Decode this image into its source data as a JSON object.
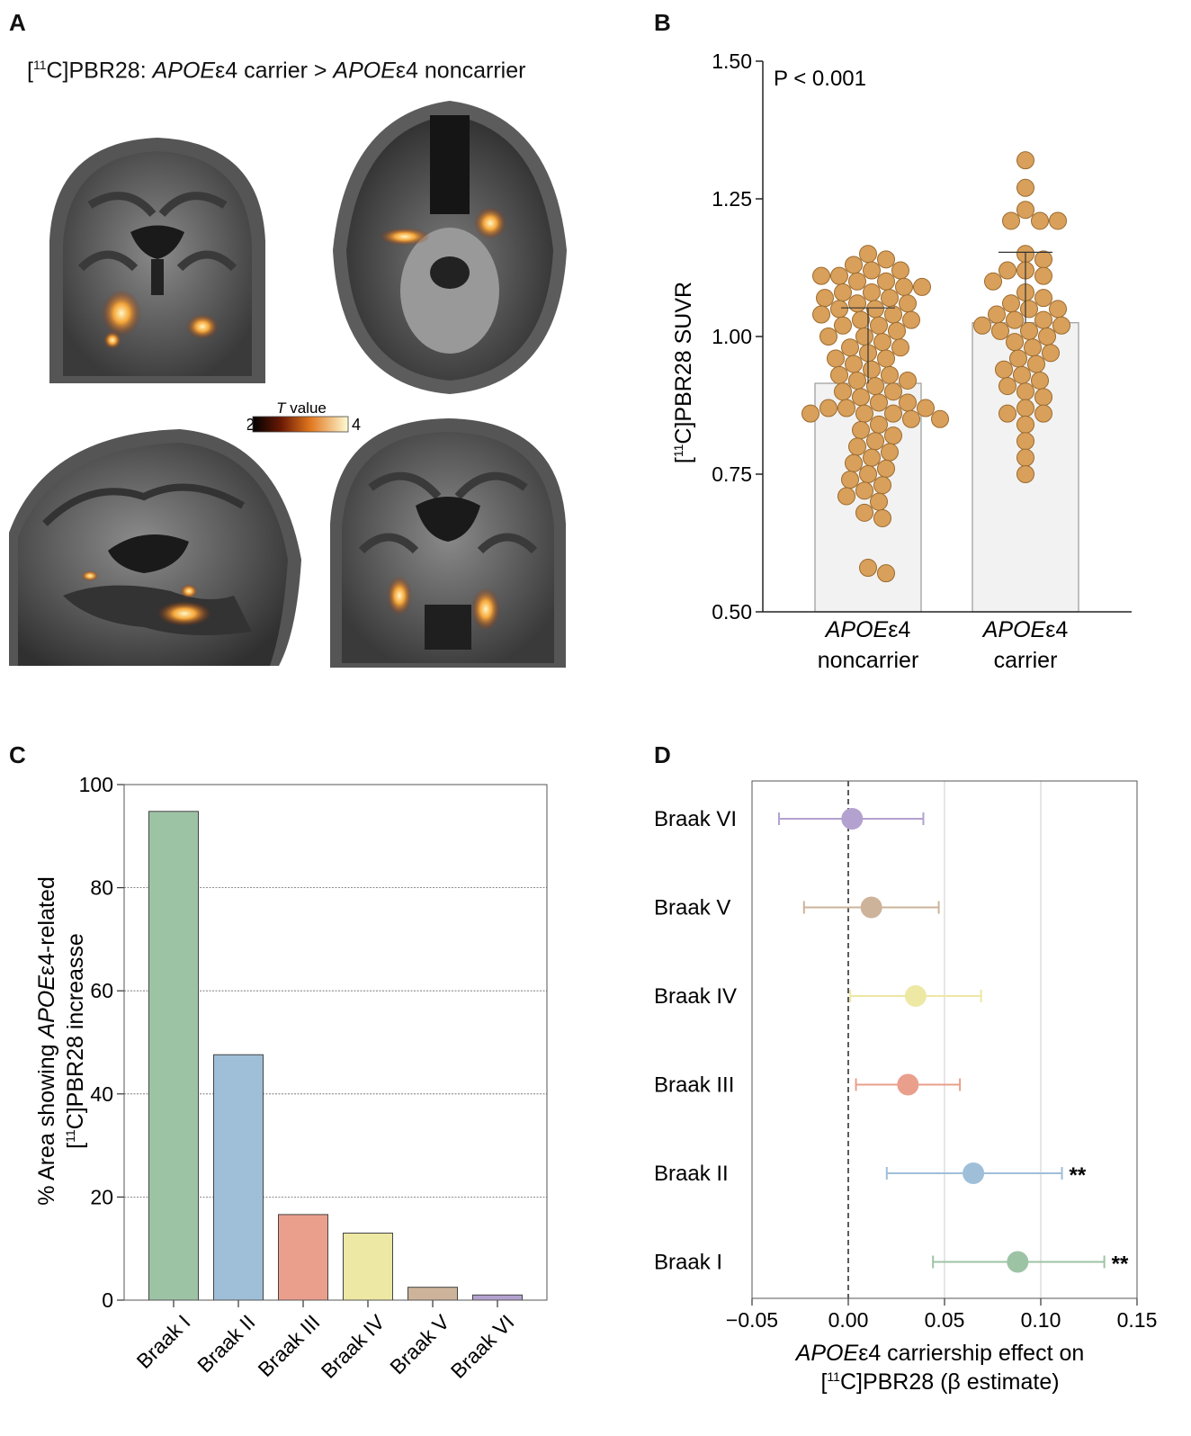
{
  "panels": {
    "a": {
      "letter": "A",
      "title": {
        "bracket_open": "[",
        "superscript": "11",
        "rest1": "C]PBR28: ",
        "italic1": "APOE",
        "mid": "ε4 carrier > ",
        "italic2": "APOE",
        "end": "ε4 noncarrier"
      },
      "colorbar": {
        "label_italic": "T",
        "label_rest": " value",
        "min": "2",
        "max": "4"
      }
    },
    "b": {
      "letter": "B"
    },
    "c": {
      "letter": "C"
    },
    "d": {
      "letter": "D"
    }
  },
  "chart_data": [
    {
      "panel": "B",
      "type": "scatter",
      "annotation": "P < 0.001",
      "ylabel": "[11C]PBR28 SUVR",
      "ylim": [
        0.5,
        1.5
      ],
      "yticks": [
        "0.50",
        "0.75",
        "1.00",
        "1.25",
        "1.50"
      ],
      "categories": [
        {
          "line1_italic": "APOE",
          "line1_rest": "ε4",
          "line2": "noncarrier"
        },
        {
          "line1_italic": "APOE",
          "line1_rest": "ε4",
          "line2": "carrier"
        }
      ],
      "bar_means": [
        0.915,
        1.025
      ],
      "sd": [
        0.137,
        0.128
      ],
      "colors": {
        "point": "#D9A05B",
        "point_edge": "#9A6A2E",
        "bar": "#F2F2F2",
        "bar_edge": "#9A9A9A"
      },
      "series": [
        {
          "values": [
            1.15,
            1.14,
            1.13,
            1.12,
            1.12,
            1.11,
            1.11,
            1.1,
            1.1,
            1.09,
            1.09,
            1.08,
            1.08,
            1.07,
            1.07,
            1.06,
            1.06,
            1.05,
            1.05,
            1.04,
            1.04,
            1.03,
            1.03,
            1.02,
            1.02,
            1.01,
            1.0,
            1.0,
            0.99,
            0.98,
            0.98,
            0.97,
            0.96,
            0.96,
            0.95,
            0.94,
            0.93,
            0.93,
            0.92,
            0.92,
            0.91,
            0.9,
            0.9,
            0.89,
            0.88,
            0.88,
            0.87,
            0.87,
            0.87,
            0.86,
            0.86,
            0.86,
            0.85,
            0.85,
            0.84,
            0.83,
            0.82,
            0.81,
            0.8,
            0.79,
            0.78,
            0.77,
            0.76,
            0.75,
            0.74,
            0.73,
            0.72,
            0.71,
            0.7,
            0.68,
            0.67,
            0.58,
            0.57
          ]
        },
        {
          "values": [
            1.32,
            1.27,
            1.23,
            1.21,
            1.21,
            1.21,
            1.15,
            1.14,
            1.12,
            1.12,
            1.11,
            1.1,
            1.08,
            1.07,
            1.06,
            1.05,
            1.05,
            1.04,
            1.03,
            1.03,
            1.02,
            1.02,
            1.01,
            1.01,
            1.0,
            0.99,
            0.98,
            0.97,
            0.96,
            0.95,
            0.94,
            0.93,
            0.92,
            0.91,
            0.9,
            0.89,
            0.87,
            0.86,
            0.86,
            0.84,
            0.81,
            0.78,
            0.75
          ]
        }
      ]
    },
    {
      "panel": "C",
      "type": "bar",
      "categories": [
        "Braak I",
        "Braak II",
        "Braak III",
        "Braak IV",
        "Braak V",
        "Braak VI"
      ],
      "values": [
        94.8,
        47.6,
        16.6,
        13.0,
        2.5,
        1.0
      ],
      "colors": [
        "#9DC3A5",
        "#9FBFD9",
        "#EA9F8C",
        "#EDE8A4",
        "#CDB39A",
        "#B3A1CF"
      ],
      "ylabel_line1_pre": "% Area showing ",
      "ylabel_line1_italic": "APOE",
      "ylabel_line1_post": "ε4-related",
      "ylabel_line2": "[11C]PBR28 increasse",
      "ylim": [
        0,
        100
      ],
      "yticks": [
        "0",
        "20",
        "40",
        "60",
        "80",
        "100"
      ],
      "grid": true
    },
    {
      "panel": "D",
      "type": "scatter",
      "orientation": "horizontal-forest",
      "categories": [
        "Braak VI",
        "Braak V",
        "Braak IV",
        "Braak III",
        "Braak II",
        "Braak I"
      ],
      "estimates": [
        0.002,
        0.012,
        0.035,
        0.031,
        0.065,
        0.088
      ],
      "ci_low": [
        -0.036,
        -0.023,
        0.001,
        0.004,
        0.02,
        0.044
      ],
      "ci_high": [
        0.039,
        0.047,
        0.069,
        0.058,
        0.111,
        0.133
      ],
      "significance": [
        "",
        "",
        "",
        "",
        "**",
        "**"
      ],
      "colors": [
        "#B3A1CF",
        "#CDB39A",
        "#EDE8A4",
        "#EA9F8C",
        "#9FBFD9",
        "#9DC3A5"
      ],
      "xlim": [
        -0.05,
        0.15
      ],
      "xticks": [
        "−0.05",
        "0.00",
        "0.05",
        "0.10",
        "0.15"
      ],
      "xlabel_line1_italic": "APOE",
      "xlabel_line1_rest": "ε4 carriership effect on",
      "xlabel_line2": "[11C]PBR28 (β estimate)",
      "reference_line": 0
    }
  ]
}
